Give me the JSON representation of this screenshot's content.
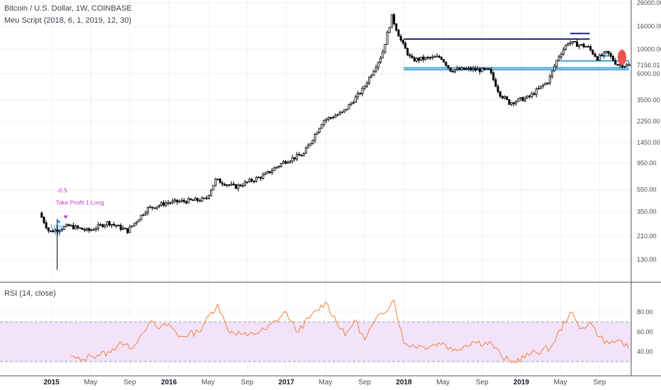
{
  "header": {
    "symbol_line": "Bitcoin / U.S. Dollar, 1W, COINBASE",
    "script_line": "Meu Script (2018, 6, 1, 2019, 12, 30)",
    "rsi_line": "RSI (14, close)"
  },
  "colors": {
    "candle": "#000000",
    "rsi_line": "#f57f39",
    "rsi_band": "#f2e3fb",
    "resistance": "#1a237e",
    "support": "#4aa6d8",
    "short_marker": "#ef5350",
    "grid": "#eef0f3",
    "entry_label": "#2196f3",
    "exit_label": "#c23ccd"
  },
  "price_axis": {
    "scale": "log",
    "ticks": [
      "26000.00",
      "16000.00",
      "10000.00",
      "7156.01",
      "6000.00",
      "3500.00",
      "2250.00",
      "1450.00",
      "950.00",
      "550.00",
      "350.00",
      "210.00",
      "130.00"
    ],
    "current_price": "7156.01"
  },
  "rsi_axis": {
    "ticks": [
      "80.00",
      "60.00",
      "40.00"
    ],
    "upper_band": 70,
    "lower_band": 30
  },
  "time_axis": [
    {
      "label": "2015",
      "bold": true
    },
    {
      "label": "May",
      "bold": false
    },
    {
      "label": "Sep",
      "bold": false
    },
    {
      "label": "2016",
      "bold": true
    },
    {
      "label": "May",
      "bold": false
    },
    {
      "label": "Sep",
      "bold": false
    },
    {
      "label": "2017",
      "bold": true
    },
    {
      "label": "May",
      "bold": false
    },
    {
      "label": "Sep",
      "bold": false
    },
    {
      "label": "2018",
      "bold": true
    },
    {
      "label": "May",
      "bold": false
    },
    {
      "label": "Sep",
      "bold": false
    },
    {
      "label": "2019",
      "bold": true
    },
    {
      "label": "May",
      "bold": false
    },
    {
      "label": "Sep",
      "bold": false
    }
  ],
  "annotations": {
    "exit_value": "-0.5",
    "exit_label": "Take Profit 1 Long",
    "entry_label": "Long",
    "entry_value": "+1"
  },
  "chart_data": [
    {
      "type": "candlestick",
      "title": "Bitcoin / U.S. Dollar, 1W, COINBASE",
      "y_scale": "log",
      "ylim": [
        100,
        26000
      ],
      "x_range": [
        "2014-11",
        "2019-12"
      ],
      "price_path": [
        {
          "date": "2014-12",
          "price": 340
        },
        {
          "date": "2015-01",
          "price": 230
        },
        {
          "date": "2015-03",
          "price": 260
        },
        {
          "date": "2015-05",
          "price": 235
        },
        {
          "date": "2015-07",
          "price": 280
        },
        {
          "date": "2015-09",
          "price": 235
        },
        {
          "date": "2015-11",
          "price": 370
        },
        {
          "date": "2016-01",
          "price": 420
        },
        {
          "date": "2016-05",
          "price": 450
        },
        {
          "date": "2016-06",
          "price": 670
        },
        {
          "date": "2016-08",
          "price": 580
        },
        {
          "date": "2016-11",
          "price": 740
        },
        {
          "date": "2017-01",
          "price": 980
        },
        {
          "date": "2017-03",
          "price": 1150
        },
        {
          "date": "2017-05",
          "price": 2300
        },
        {
          "date": "2017-07",
          "price": 2700
        },
        {
          "date": "2017-09",
          "price": 4300
        },
        {
          "date": "2017-11",
          "price": 9000
        },
        {
          "date": "2017-12",
          "price": 19500
        },
        {
          "date": "2018-01",
          "price": 11500
        },
        {
          "date": "2018-02",
          "price": 8000
        },
        {
          "date": "2018-05",
          "price": 8500
        },
        {
          "date": "2018-06",
          "price": 6500
        },
        {
          "date": "2018-08",
          "price": 6600
        },
        {
          "date": "2018-10",
          "price": 6400
        },
        {
          "date": "2018-11",
          "price": 4000
        },
        {
          "date": "2018-12",
          "price": 3300
        },
        {
          "date": "2019-02",
          "price": 3700
        },
        {
          "date": "2019-04",
          "price": 5200
        },
        {
          "date": "2019-05",
          "price": 8500
        },
        {
          "date": "2019-06",
          "price": 11500
        },
        {
          "date": "2019-08",
          "price": 10500
        },
        {
          "date": "2019-09",
          "price": 8300
        },
        {
          "date": "2019-10",
          "price": 9300
        },
        {
          "date": "2019-11",
          "price": 7300
        },
        {
          "date": "2019-12",
          "price": 7156
        }
      ],
      "levels": [
        {
          "kind": "resistance",
          "price": 12300,
          "from": "2018-01",
          "to": "2019-08"
        },
        {
          "kind": "resistance",
          "price": 13800,
          "from": "2019-06",
          "to": "2019-08"
        },
        {
          "kind": "support",
          "price": 6800,
          "from": "2018-01",
          "to": "2019-12"
        },
        {
          "kind": "support",
          "price": 6550,
          "from": "2018-01",
          "to": "2019-12"
        },
        {
          "kind": "support",
          "price": 7850,
          "from": "2019-05",
          "to": "2019-12"
        },
        {
          "kind": "support",
          "price": 8700,
          "from": "2019-09",
          "to": "2019-10"
        }
      ],
      "short_marker": {
        "date": "2019-11",
        "price": 8800
      }
    },
    {
      "type": "line",
      "title": "RSI (14, close)",
      "ylim": [
        25,
        95
      ],
      "bands": [
        30,
        70
      ],
      "series": [
        {
          "values_by_date": [
            {
              "date": "2015-03",
              "rsi": 35
            },
            {
              "date": "2015-04",
              "rsi": 31
            },
            {
              "date": "2015-05",
              "rsi": 36
            },
            {
              "date": "2015-07",
              "rsi": 39
            },
            {
              "date": "2015-08",
              "rsi": 50
            },
            {
              "date": "2015-09",
              "rsi": 43
            },
            {
              "date": "2015-10",
              "rsi": 55
            },
            {
              "date": "2015-11",
              "rsi": 70
            },
            {
              "date": "2015-12",
              "rsi": 63
            },
            {
              "date": "2016-01",
              "rsi": 68
            },
            {
              "date": "2016-02",
              "rsi": 55
            },
            {
              "date": "2016-04",
              "rsi": 60
            },
            {
              "date": "2016-06",
              "rsi": 88
            },
            {
              "date": "2016-07",
              "rsi": 62
            },
            {
              "date": "2016-09",
              "rsi": 56
            },
            {
              "date": "2016-11",
              "rsi": 63
            },
            {
              "date": "2017-01",
              "rsi": 80
            },
            {
              "date": "2017-02",
              "rsi": 60
            },
            {
              "date": "2017-05",
              "rsi": 90
            },
            {
              "date": "2017-07",
              "rsi": 56
            },
            {
              "date": "2017-08",
              "rsi": 72
            },
            {
              "date": "2017-09",
              "rsi": 52
            },
            {
              "date": "2017-10",
              "rsi": 70
            },
            {
              "date": "2017-12",
              "rsi": 92
            },
            {
              "date": "2018-01",
              "rsi": 48
            },
            {
              "date": "2018-03",
              "rsi": 45
            },
            {
              "date": "2018-05",
              "rsi": 49
            },
            {
              "date": "2018-06",
              "rsi": 41
            },
            {
              "date": "2018-08",
              "rsi": 50
            },
            {
              "date": "2018-10",
              "rsi": 48
            },
            {
              "date": "2018-11",
              "rsi": 35
            },
            {
              "date": "2018-12",
              "rsi": 29
            },
            {
              "date": "2019-02",
              "rsi": 38
            },
            {
              "date": "2019-04",
              "rsi": 44
            },
            {
              "date": "2019-06",
              "rsi": 80
            },
            {
              "date": "2019-07",
              "rsi": 63
            },
            {
              "date": "2019-08",
              "rsi": 70
            },
            {
              "date": "2019-09",
              "rsi": 55
            },
            {
              "date": "2019-10",
              "rsi": 48
            },
            {
              "date": "2019-11",
              "rsi": 52
            },
            {
              "date": "2019-12",
              "rsi": 43
            }
          ]
        }
      ]
    }
  ]
}
